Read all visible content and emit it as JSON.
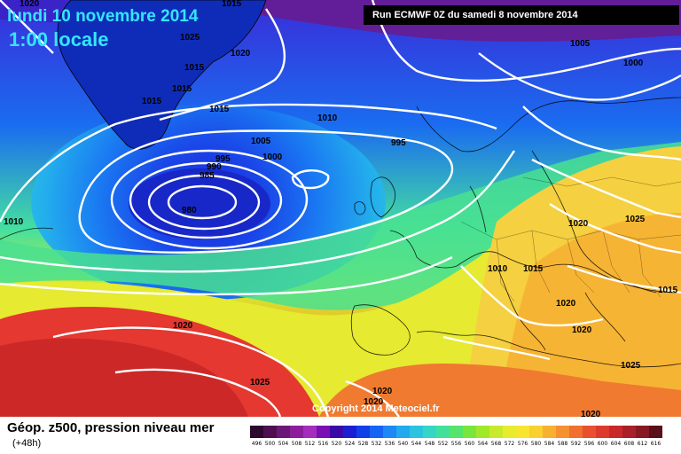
{
  "header": {
    "date": "lundi 10 novembre 2014",
    "time": "1:00 locale",
    "run": "Run ECMWF 0Z du samedi 8 novembre 2014"
  },
  "copyright": "Copyright 2014 Meteociel.fr",
  "legend": {
    "title": "Géop. z500, pression niveau mer",
    "subtitle": "(+48h)",
    "ticks": [
      "496",
      "500",
      "504",
      "508",
      "512",
      "516",
      "520",
      "524",
      "528",
      "532",
      "536",
      "540",
      "544",
      "548",
      "552",
      "556",
      "560",
      "564",
      "568",
      "572",
      "576",
      "580",
      "584",
      "588",
      "592",
      "596",
      "600",
      "604",
      "608",
      "612",
      "616"
    ],
    "colors": [
      "#2b0a2e",
      "#4d0f52",
      "#6b1777",
      "#8c1e9c",
      "#a52dbb",
      "#7a0fb4",
      "#3a0aa8",
      "#1c1fd0",
      "#1040e8",
      "#1565f5",
      "#1e88f5",
      "#24a8ef",
      "#2bc4e0",
      "#36d6c4",
      "#42e09c",
      "#55e46c",
      "#78e63c",
      "#a0e82a",
      "#c8ea28",
      "#e8ec2e",
      "#f8e62e",
      "#fad030",
      "#f8b030",
      "#f69030",
      "#f07030",
      "#e85030",
      "#dd3a2e",
      "#c8282a",
      "#a82028",
      "#881824",
      "#5a1018"
    ]
  },
  "isobars": [
    "1020",
    "1015",
    "1025",
    "1015",
    "1015",
    "1020",
    "1015",
    "1010",
    "1005",
    "1000",
    "995",
    "995",
    "990",
    "985",
    "980",
    "1005",
    "1000",
    "1010",
    "1020",
    "1025",
    "1010",
    "1015",
    "1020",
    "1025",
    "1020",
    "1020",
    "1025",
    "1015",
    "1015",
    "1020",
    "1020",
    "1020"
  ]
}
